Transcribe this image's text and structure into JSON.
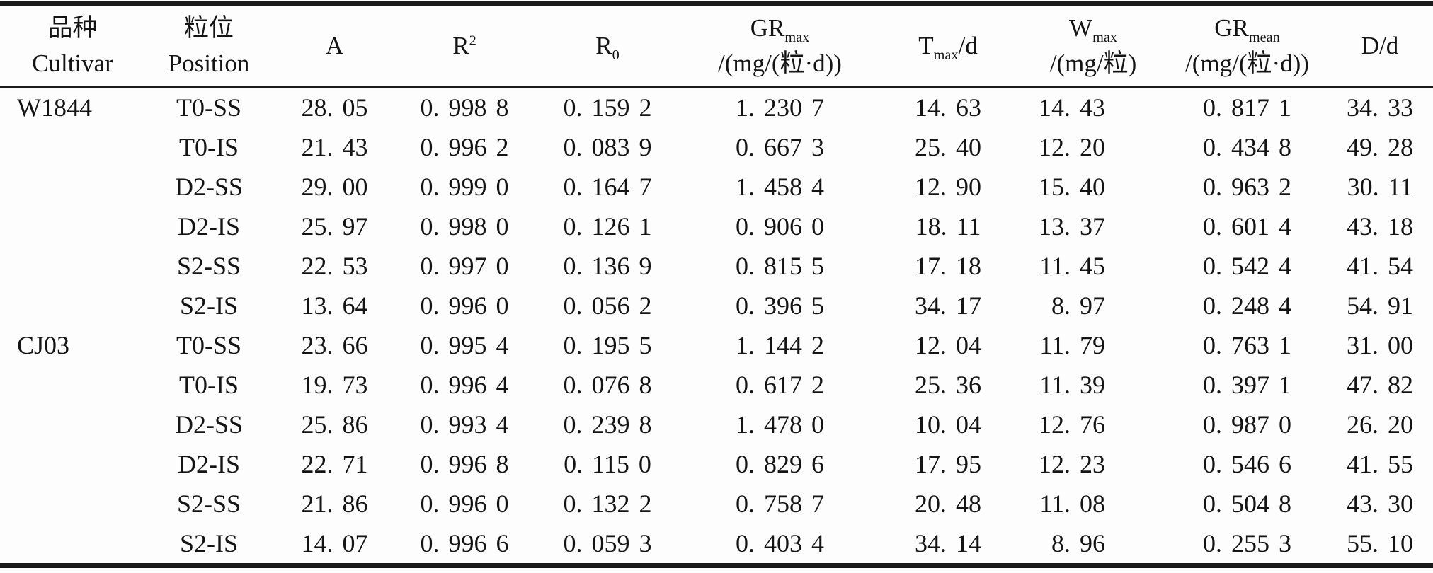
{
  "table": {
    "columns": [
      {
        "id": "cultivar",
        "zh": "品种",
        "en": "Cultivar"
      },
      {
        "id": "position",
        "zh": "粒位",
        "en": "Position"
      },
      {
        "id": "a",
        "symbol": "A"
      },
      {
        "id": "r-squared",
        "symbol": "R",
        "sup": "2"
      },
      {
        "id": "r-zero",
        "symbol": "R",
        "sub": "0"
      },
      {
        "id": "gr-max",
        "symbol": "GR",
        "sub": "max",
        "unit": "/(mg/(粒·d))"
      },
      {
        "id": "t-max",
        "symbol": "T",
        "sub": "max",
        "suffix": "/d"
      },
      {
        "id": "w-max",
        "symbol": "W",
        "sub": "max",
        "unit": "/(mg/粒)"
      },
      {
        "id": "gr-mean",
        "symbol": "GR",
        "sub": "mean",
        "unit": "/(mg/(粒·d))"
      },
      {
        "id": "d",
        "symbol": "D/d"
      }
    ],
    "groups": [
      {
        "cultivar": "W1844",
        "rows": [
          {
            "position": "T0-SS",
            "values": [
              "28. 05",
              "0. 998 8",
              "0. 159 2",
              "1. 230 7",
              "14. 63",
              "14. 43",
              "0. 817 1",
              "34. 33"
            ]
          },
          {
            "position": "T0-IS",
            "values": [
              "21. 43",
              "0. 996 2",
              "0. 083 9",
              "0. 667 3",
              "25. 40",
              "12. 20",
              "0. 434 8",
              "49. 28"
            ]
          },
          {
            "position": "D2-SS",
            "values": [
              "29. 00",
              "0. 999 0",
              "0. 164 7",
              "1. 458 4",
              "12. 90",
              "15. 40",
              "0. 963 2",
              "30. 11"
            ]
          },
          {
            "position": "D2-IS",
            "values": [
              "25. 97",
              "0. 998 0",
              "0. 126 1",
              "0. 906 0",
              "18. 11",
              "13. 37",
              "0. 601 4",
              "43. 18"
            ]
          },
          {
            "position": "S2-SS",
            "values": [
              "22. 53",
              "0. 997 0",
              "0. 136 9",
              "0. 815 5",
              "17. 18",
              "11. 45",
              "0. 542 4",
              "41. 54"
            ]
          },
          {
            "position": "S2-IS",
            "values": [
              "13. 64",
              "0. 996 0",
              "0. 056 2",
              "0. 396 5",
              "34. 17",
              "8. 97",
              "0. 248 4",
              "54. 91"
            ]
          }
        ]
      },
      {
        "cultivar": "CJ03",
        "rows": [
          {
            "position": "T0-SS",
            "values": [
              "23. 66",
              "0. 995 4",
              "0. 195 5",
              "1. 144 2",
              "12. 04",
              "11. 79",
              "0. 763 1",
              "31. 00"
            ]
          },
          {
            "position": "T0-IS",
            "values": [
              "19. 73",
              "0. 996 4",
              "0. 076 8",
              "0. 617 2",
              "25. 36",
              "11. 39",
              "0. 397 1",
              "47. 82"
            ]
          },
          {
            "position": "D2-SS",
            "values": [
              "25. 86",
              "0. 993 4",
              "0. 239 8",
              "1. 478 0",
              "10. 04",
              "12. 76",
              "0. 987 0",
              "26. 20"
            ]
          },
          {
            "position": "D2-IS",
            "values": [
              "22. 71",
              "0. 996 8",
              "0. 115 0",
              "0. 829 6",
              "17. 95",
              "12. 23",
              "0. 546 6",
              "41. 55"
            ]
          },
          {
            "position": "S2-SS",
            "values": [
              "21. 86",
              "0. 996 0",
              "0. 132 2",
              "0. 758 7",
              "20. 48",
              "11. 08",
              "0. 504 8",
              "43. 30"
            ]
          },
          {
            "position": "S2-IS",
            "values": [
              "14. 07",
              "0. 996 6",
              "0. 059 3",
              "0. 403 4",
              "34. 14",
              "8. 96",
              "0. 255 3",
              "55. 10"
            ]
          }
        ]
      }
    ]
  }
}
